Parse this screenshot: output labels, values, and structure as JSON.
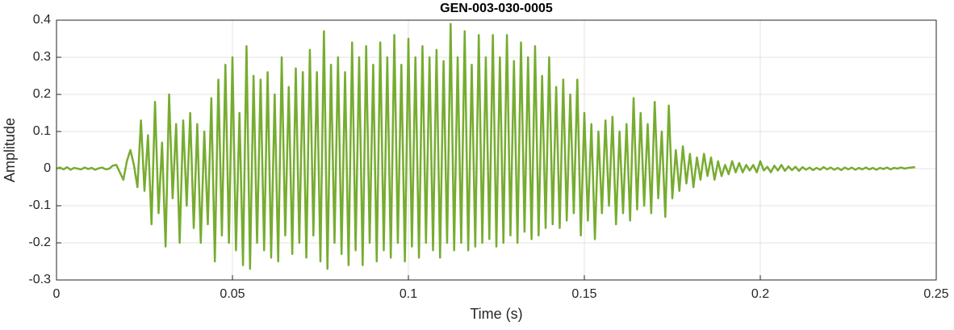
{
  "chart_data": {
    "type": "line",
    "title": "GEN-003-030-0005",
    "x_label": "Time (s)",
    "y_label": "Amplitude",
    "color": "#77ac30",
    "grid": true,
    "xlim": [
      0,
      0.25
    ],
    "ylim": [
      -0.3,
      0.4
    ],
    "xticks": [
      0,
      0.05,
      0.1,
      0.15,
      0.2,
      0.25
    ],
    "yticks": [
      -0.3,
      -0.2,
      -0.1,
      0,
      0.1,
      0.2,
      0.3,
      0.4
    ],
    "x": [
      0,
      0.001,
      0.002,
      0.003,
      0.004,
      0.005,
      0.006,
      0.007,
      0.008,
      0.009,
      0.01,
      0.011,
      0.012,
      0.013,
      0.014,
      0.015,
      0.016,
      0.017,
      0.018,
      0.019,
      0.02,
      0.021,
      0.022,
      0.023,
      0.024,
      0.025,
      0.026,
      0.027,
      0.028,
      0.029,
      0.03,
      0.031,
      0.032,
      0.033,
      0.034,
      0.035,
      0.036,
      0.037,
      0.038,
      0.039,
      0.04,
      0.041,
      0.042,
      0.043,
      0.044,
      0.045,
      0.046,
      0.047,
      0.048,
      0.049,
      0.05,
      0.051,
      0.052,
      0.053,
      0.054,
      0.055,
      0.056,
      0.057,
      0.058,
      0.059,
      0.06,
      0.061,
      0.062,
      0.063,
      0.064,
      0.065,
      0.066,
      0.067,
      0.068,
      0.069,
      0.07,
      0.071,
      0.072,
      0.073,
      0.074,
      0.075,
      0.076,
      0.077,
      0.078,
      0.079,
      0.08,
      0.081,
      0.082,
      0.083,
      0.084,
      0.085,
      0.086,
      0.087,
      0.088,
      0.089,
      0.09,
      0.091,
      0.092,
      0.093,
      0.094,
      0.095,
      0.096,
      0.097,
      0.098,
      0.099,
      0.1,
      0.101,
      0.102,
      0.103,
      0.104,
      0.105,
      0.106,
      0.107,
      0.108,
      0.109,
      0.11,
      0.111,
      0.112,
      0.113,
      0.114,
      0.115,
      0.116,
      0.117,
      0.118,
      0.119,
      0.12,
      0.121,
      0.122,
      0.123,
      0.124,
      0.125,
      0.126,
      0.127,
      0.128,
      0.129,
      0.13,
      0.131,
      0.132,
      0.133,
      0.134,
      0.135,
      0.136,
      0.137,
      0.138,
      0.139,
      0.14,
      0.141,
      0.142,
      0.143,
      0.144,
      0.145,
      0.146,
      0.147,
      0.148,
      0.149,
      0.15,
      0.151,
      0.152,
      0.153,
      0.154,
      0.155,
      0.156,
      0.157,
      0.158,
      0.159,
      0.16,
      0.161,
      0.162,
      0.163,
      0.164,
      0.165,
      0.166,
      0.167,
      0.168,
      0.169,
      0.17,
      0.171,
      0.172,
      0.173,
      0.174,
      0.175,
      0.176,
      0.177,
      0.178,
      0.179,
      0.18,
      0.181,
      0.182,
      0.183,
      0.184,
      0.185,
      0.186,
      0.187,
      0.188,
      0.189,
      0.19,
      0.191,
      0.192,
      0.193,
      0.194,
      0.195,
      0.196,
      0.197,
      0.198,
      0.199,
      0.2,
      0.201,
      0.202,
      0.203,
      0.204,
      0.205,
      0.206,
      0.207,
      0.208,
      0.209,
      0.21,
      0.211,
      0.212,
      0.213,
      0.214,
      0.215,
      0.216,
      0.217,
      0.218,
      0.219,
      0.22,
      0.221,
      0.222,
      0.223,
      0.224,
      0.225,
      0.226,
      0.227,
      0.228,
      0.229,
      0.23,
      0.231,
      0.232,
      0.233,
      0.234,
      0.235,
      0.236,
      0.237,
      0.238,
      0.239,
      0.24,
      0.241,
      0.242,
      0.243,
      0.244
    ],
    "values": [
      0,
      0.003,
      -0.002,
      0.004,
      -0.003,
      0.002,
      0,
      -0.002,
      0.003,
      -0.001,
      0.002,
      -0.003,
      0.001,
      0.003,
      -0.002,
      0,
      0.008,
      0.01,
      -0.01,
      -0.03,
      0.02,
      0.05,
      0.01,
      -0.05,
      0.13,
      -0.06,
      0.09,
      -0.15,
      0.18,
      -0.12,
      0.07,
      -0.21,
      0.2,
      -0.08,
      0.12,
      -0.2,
      0.13,
      -0.1,
      0.15,
      -0.16,
      0.12,
      -0.2,
      0.1,
      -0.15,
      0.19,
      -0.25,
      0.24,
      -0.18,
      0.28,
      -0.2,
      0.3,
      -0.22,
      0.15,
      -0.26,
      0.33,
      -0.27,
      0.25,
      -0.2,
      0.24,
      -0.22,
      0.26,
      -0.24,
      0.2,
      -0.25,
      0.3,
      -0.18,
      0.22,
      -0.23,
      0.27,
      -0.2,
      0.26,
      -0.24,
      0.32,
      -0.18,
      0.26,
      -0.25,
      0.37,
      -0.27,
      0.28,
      -0.2,
      0.3,
      -0.23,
      0.26,
      -0.26,
      0.34,
      -0.22,
      0.3,
      -0.26,
      0.33,
      -0.2,
      0.28,
      -0.25,
      0.34,
      -0.22,
      0.3,
      -0.24,
      0.36,
      -0.2,
      0.28,
      -0.25,
      0.35,
      -0.21,
      0.3,
      -0.24,
      0.33,
      -0.2,
      0.3,
      -0.22,
      0.32,
      -0.24,
      0.29,
      -0.2,
      0.39,
      -0.22,
      0.3,
      -0.2,
      0.37,
      -0.22,
      0.28,
      -0.21,
      0.36,
      -0.2,
      0.3,
      -0.19,
      0.36,
      -0.21,
      0.3,
      -0.2,
      0.36,
      -0.18,
      0.29,
      -0.2,
      0.34,
      -0.17,
      0.3,
      -0.19,
      0.33,
      -0.18,
      0.25,
      -0.16,
      0.3,
      -0.15,
      0.22,
      -0.16,
      0.24,
      -0.14,
      0.2,
      -0.12,
      0.24,
      -0.18,
      0.15,
      -0.14,
      0.12,
      -0.19,
      0.1,
      -0.12,
      0.13,
      -0.1,
      0.14,
      -0.15,
      0.1,
      -0.12,
      0.12,
      -0.14,
      0.19,
      -0.11,
      0.15,
      -0.1,
      0.12,
      -0.12,
      0.18,
      -0.08,
      0.1,
      -0.13,
      0.17,
      -0.08,
      0.05,
      -0.06,
      0.06,
      -0.04,
      0.04,
      -0.05,
      0.03,
      -0.03,
      0.04,
      -0.02,
      0.03,
      -0.03,
      0.02,
      -0.02,
      0.01,
      -0.015,
      0.02,
      -0.01,
      0.015,
      -0.01,
      0.01,
      -0.005,
      0.01,
      -0.01,
      0.02,
      -0.005,
      0.005,
      -0.01,
      0.008,
      -0.005,
      0.01,
      -0.006,
      0.006,
      -0.004,
      0.005,
      -0.006,
      0.004,
      -0.003,
      0.003,
      -0.004,
      0.002,
      -0.003,
      0.004,
      -0.002,
      0.003,
      -0.003,
      0.002,
      -0.004,
      0.003,
      -0.002,
      0.003,
      -0.003,
      0.002,
      -0.002,
      0.003,
      -0.002,
      0.002,
      -0.003,
      0.002,
      -0.001,
      0.003,
      -0.002,
      0.002,
      0,
      0.003,
      0,
      0.002,
      0.003,
      0.004
    ]
  }
}
